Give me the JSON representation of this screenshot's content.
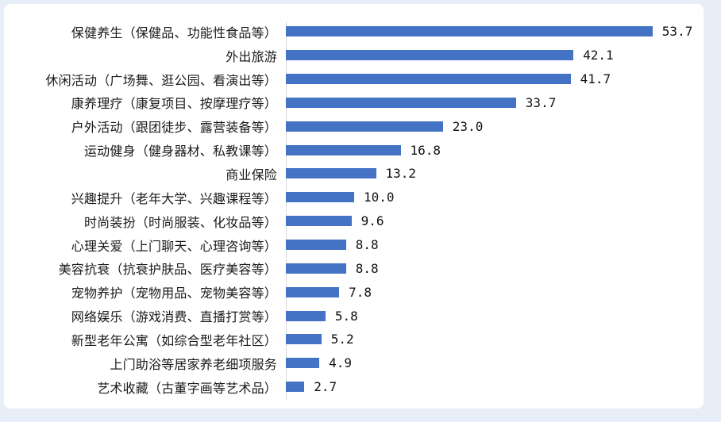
{
  "chart_data": {
    "type": "bar",
    "orientation": "horizontal",
    "title": "",
    "xlabel": "",
    "ylabel": "",
    "grid": false,
    "legend": false,
    "xlim": [
      0,
      60
    ],
    "categories": [
      "保健养生（保健品、功能性食品等）",
      "外出旅游",
      "休闲活动（广场舞、逛公园、看演出等）",
      "康养理疗（康复项目、按摩理疗等）",
      "户外活动（跟团徒步、露营装备等）",
      "运动健身（健身器材、私教课等）",
      "商业保险",
      "兴趣提升（老年大学、兴趣课程等）",
      "时尚装扮（时尚服装、化妆品等）",
      "心理关爱（上门聊天、心理咨询等）",
      "美容抗衰（抗衰护肤品、医疗美容等）",
      "宠物养护（宠物用品、宠物美容等）",
      "网络娱乐（游戏消费、直播打赏等）",
      "新型老年公寓（如综合型老年社区）",
      "上门助浴等居家养老细项服务",
      "艺术收藏（古董字画等艺术品）"
    ],
    "values": [
      53.7,
      42.1,
      41.7,
      33.7,
      23.0,
      16.8,
      13.2,
      10.0,
      9.6,
      8.8,
      8.8,
      7.8,
      5.8,
      5.2,
      4.9,
      2.7
    ],
    "value_labels": [
      "53.7",
      "42.1",
      "41.7",
      "33.7",
      "23.0",
      "16.8",
      "13.2",
      "10.0",
      "9.6",
      "8.8",
      "8.8",
      "7.8",
      "5.8",
      "5.2",
      "4.9",
      "2.7"
    ],
    "colors": {
      "bar": "#4472C4",
      "axis_line": "#d9d9d9",
      "card_background": "#ffffff",
      "page_background": "#e8eef7",
      "text": "#1a1a1a"
    }
  }
}
